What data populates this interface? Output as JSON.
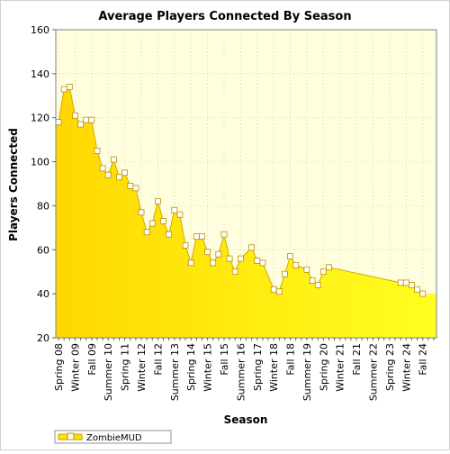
{
  "chart_data": {
    "type": "area",
    "title": "Average Players Connected By Season",
    "xlabel": "Season",
    "ylabel": "Players Connected",
    "ylim": [
      20,
      160
    ],
    "yticks": [
      20,
      40,
      60,
      80,
      100,
      120,
      140,
      160
    ],
    "grid": true,
    "legend_position": "bottom-left",
    "colors": {
      "plot_background": "#FFFFE0",
      "area_top": "#FFD700",
      "area_bottom": "#FFFF20",
      "line": "#D4A800",
      "marker_fill": "#FFFFFF",
      "marker_stroke": "#B89000",
      "grid": "#C8C8A0"
    },
    "x_count": 69,
    "tick_labels": [
      {
        "i": 0,
        "label": "Spring 08"
      },
      {
        "i": 3,
        "label": "Winter 09"
      },
      {
        "i": 6,
        "label": "Fall 09"
      },
      {
        "i": 9,
        "label": "Summer 10"
      },
      {
        "i": 12,
        "label": "Spring 11"
      },
      {
        "i": 15,
        "label": "Winter 12"
      },
      {
        "i": 18,
        "label": "Fall 12"
      },
      {
        "i": 21,
        "label": "Summer 13"
      },
      {
        "i": 24,
        "label": "Spring 14"
      },
      {
        "i": 27,
        "label": "Winter 15"
      },
      {
        "i": 30,
        "label": "Fall 15"
      },
      {
        "i": 33,
        "label": "Summer 16"
      },
      {
        "i": 36,
        "label": "Spring 17"
      },
      {
        "i": 39,
        "label": "Winter 18"
      },
      {
        "i": 42,
        "label": "Fall 18"
      },
      {
        "i": 45,
        "label": "Summer 19"
      },
      {
        "i": 48,
        "label": "Spring 20"
      },
      {
        "i": 51,
        "label": "Winter 21"
      },
      {
        "i": 54,
        "label": "Fall 21"
      },
      {
        "i": 57,
        "label": "Summer 22"
      },
      {
        "i": 60,
        "label": "Spring 23"
      },
      {
        "i": 63,
        "label": "Winter 24"
      },
      {
        "i": 66,
        "label": "Fall 24"
      }
    ],
    "series": [
      {
        "name": "ZombieMUD",
        "points": [
          [
            0,
            118
          ],
          [
            1,
            133
          ],
          [
            2,
            134
          ],
          [
            3,
            121
          ],
          [
            4,
            117
          ],
          [
            5,
            119
          ],
          [
            6,
            119
          ],
          [
            7,
            105
          ],
          [
            8,
            97
          ],
          [
            9,
            94
          ],
          [
            10,
            101
          ],
          [
            11,
            93
          ],
          [
            12,
            95
          ],
          [
            13,
            89
          ],
          [
            14,
            88
          ],
          [
            15,
            77
          ],
          [
            16,
            68
          ],
          [
            17,
            72
          ],
          [
            18,
            82
          ],
          [
            19,
            73
          ],
          [
            20,
            67
          ],
          [
            21,
            78
          ],
          [
            22,
            76
          ],
          [
            23,
            62
          ],
          [
            24,
            54
          ],
          [
            25,
            66
          ],
          [
            26,
            66
          ],
          [
            27,
            59
          ],
          [
            28,
            54
          ],
          [
            29,
            58
          ],
          [
            30,
            67
          ],
          [
            31,
            56
          ],
          [
            32,
            50
          ],
          [
            33,
            56
          ],
          [
            35,
            61
          ],
          [
            36,
            55
          ],
          [
            37,
            54
          ],
          [
            39,
            42
          ],
          [
            40,
            41
          ],
          [
            41,
            49
          ],
          [
            42,
            57
          ],
          [
            43,
            53
          ],
          [
            45,
            51
          ],
          [
            46,
            46
          ],
          [
            47,
            44
          ],
          [
            48,
            50
          ],
          [
            49,
            52
          ],
          [
            62,
            45
          ],
          [
            63,
            45
          ],
          [
            64,
            44
          ],
          [
            65,
            42
          ],
          [
            66,
            40
          ]
        ]
      }
    ]
  }
}
